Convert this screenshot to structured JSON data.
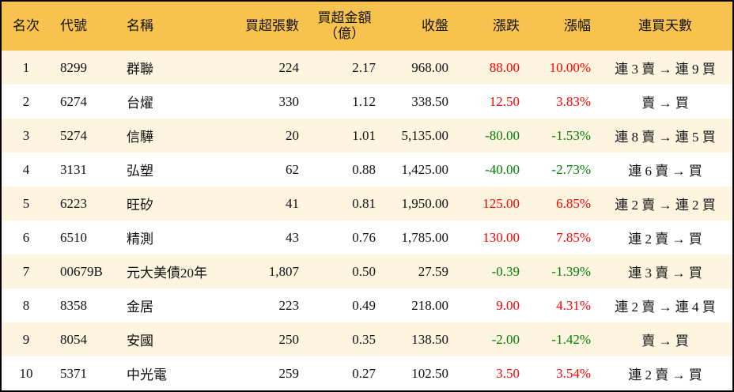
{
  "colors": {
    "header_bg": "#f8c24f",
    "alt_row_bg": "#fdf5e0",
    "up": "#ff0000",
    "down": "#008000"
  },
  "headers": {
    "rank": "名次",
    "code": "代號",
    "name": "名稱",
    "qty": "買超張數",
    "amount_line1": "買超金額",
    "amount_line2": "（億）",
    "close": "收盤",
    "change": "漲跌",
    "pct": "漲幅",
    "days": "連買天數"
  },
  "rows": [
    {
      "rank": "1",
      "code": "8299",
      "name": "群聯",
      "qty": "224",
      "amount": "2.17",
      "close": "968.00",
      "change": "88.00",
      "pct": "10.00%",
      "days": "連 3 賣 → 連 9 買",
      "dir": "up"
    },
    {
      "rank": "2",
      "code": "6274",
      "name": "台燿",
      "qty": "330",
      "amount": "1.12",
      "close": "338.50",
      "change": "12.50",
      "pct": "3.83%",
      "days": "賣 → 買",
      "dir": "up"
    },
    {
      "rank": "3",
      "code": "5274",
      "name": "信驊",
      "qty": "20",
      "amount": "1.01",
      "close": "5,135.00",
      "change": "-80.00",
      "pct": "-1.53%",
      "days": "連 8 賣 → 連 5 買",
      "dir": "down"
    },
    {
      "rank": "4",
      "code": "3131",
      "name": "弘塑",
      "qty": "62",
      "amount": "0.88",
      "close": "1,425.00",
      "change": "-40.00",
      "pct": "-2.73%",
      "days": "連 6 賣 → 買",
      "dir": "down"
    },
    {
      "rank": "5",
      "code": "6223",
      "name": "旺矽",
      "qty": "41",
      "amount": "0.81",
      "close": "1,950.00",
      "change": "125.00",
      "pct": "6.85%",
      "days": "連 2 賣 → 連 2 買",
      "dir": "up"
    },
    {
      "rank": "6",
      "code": "6510",
      "name": "精測",
      "qty": "43",
      "amount": "0.76",
      "close": "1,785.00",
      "change": "130.00",
      "pct": "7.85%",
      "days": "連 2 賣 → 買",
      "dir": "up"
    },
    {
      "rank": "7",
      "code": "00679B",
      "name": "元大美債20年",
      "qty": "1,807",
      "amount": "0.50",
      "close": "27.59",
      "change": "-0.39",
      "pct": "-1.39%",
      "days": "連 3 賣 → 買",
      "dir": "down"
    },
    {
      "rank": "8",
      "code": "8358",
      "name": "金居",
      "qty": "223",
      "amount": "0.49",
      "close": "218.00",
      "change": "9.00",
      "pct": "4.31%",
      "days": "連 2 賣 → 連 4 買",
      "dir": "up"
    },
    {
      "rank": "9",
      "code": "8054",
      "name": "安國",
      "qty": "250",
      "amount": "0.35",
      "close": "138.50",
      "change": "-2.00",
      "pct": "-1.42%",
      "days": "賣 → 買",
      "dir": "down"
    },
    {
      "rank": "10",
      "code": "5371",
      "name": "中光電",
      "qty": "259",
      "amount": "0.27",
      "close": "102.50",
      "change": "3.50",
      "pct": "3.54%",
      "days": "連 2 賣 → 買",
      "dir": "up"
    }
  ]
}
